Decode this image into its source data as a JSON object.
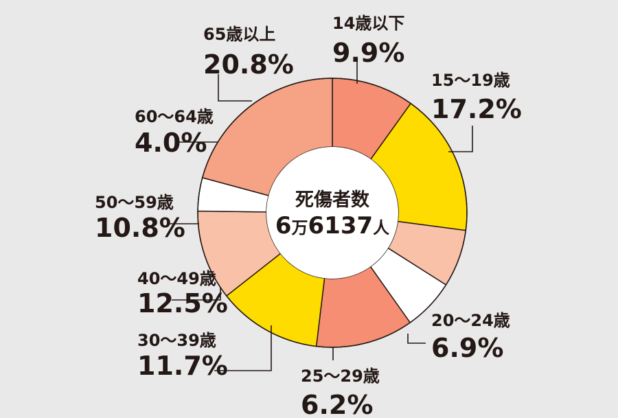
{
  "chart_data": {
    "type": "pie",
    "center": {
      "title": "死傷者数",
      "total_man": "6",
      "unit_man": "万",
      "total_rest": "6137",
      "unit_person": "人"
    },
    "slices": [
      {
        "category": "14歳以下",
        "label": "9.9%",
        "value": 9.9,
        "color": "#f58e72"
      },
      {
        "category": "15～19歳",
        "label": "17.2%",
        "value": 17.2,
        "color": "#ffdc00"
      },
      {
        "category": "20～24歳",
        "label": "6.9%",
        "value": 6.9,
        "color": "#f9c1a8"
      },
      {
        "category": "25～29歳",
        "label": "6.2%",
        "value": 6.2,
        "color": "#ffffff"
      },
      {
        "category": "30～39歳",
        "label": "11.7%",
        "value": 11.7,
        "color": "#f58e72"
      },
      {
        "category": "40～49歳",
        "label": "12.5%",
        "value": 12.5,
        "color": "#ffdc00"
      },
      {
        "category": "50～59歳",
        "label": "10.8%",
        "value": 10.8,
        "color": "#f9c1a8"
      },
      {
        "category": "60～64歳",
        "label": "4.0%",
        "value": 4.0,
        "color": "#ffffff"
      },
      {
        "category": "65歳以上",
        "label": "20.8%",
        "value": 20.8,
        "color": "#f5a285"
      }
    ]
  }
}
